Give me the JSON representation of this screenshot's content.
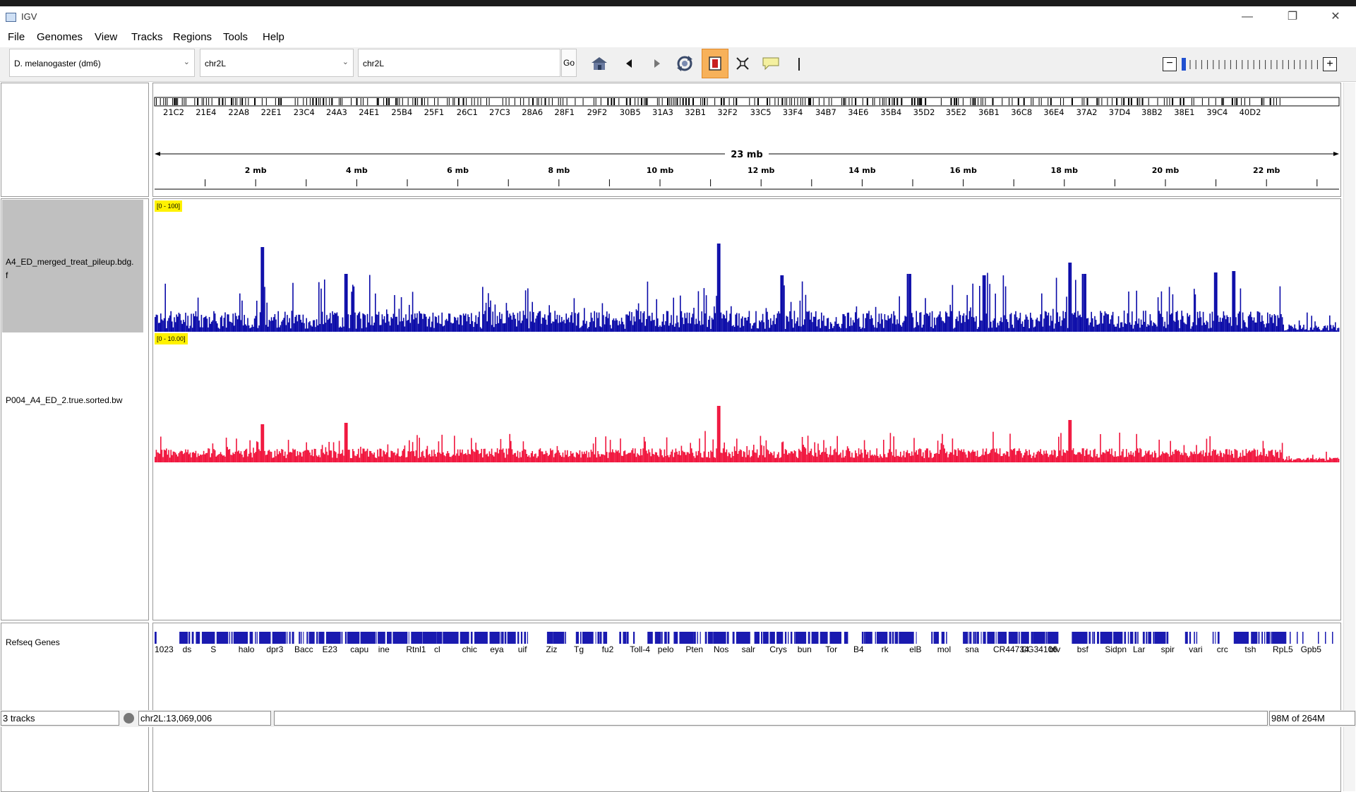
{
  "window": {
    "title": "IGV"
  },
  "menu": [
    "File",
    "Genomes",
    "View",
    "Tracks",
    "Regions",
    "Tools",
    "Help"
  ],
  "toolbar": {
    "genome": "D. melanogaster (dm6)",
    "chromosome": "chr2L",
    "locus": "chr2L",
    "go_label": "Go",
    "icons": [
      "home-icon",
      "back-icon",
      "forward-icon",
      "refresh-icon",
      "region-of-interest-icon",
      "resize-icon",
      "popup-text-icon"
    ]
  },
  "ruler": {
    "span_label": "23 mb",
    "tick_labels": [
      "2 mb",
      "4 mb",
      "6 mb",
      "8 mb",
      "10 mb",
      "12 mb",
      "14 mb",
      "16 mb",
      "18 mb",
      "20 mb",
      "22 mb"
    ],
    "bands": [
      "21C2",
      "21E4",
      "22A8",
      "22E1",
      "23C4",
      "24A3",
      "24E1",
      "25B4",
      "25F1",
      "26C1",
      "27C3",
      "28A6",
      "28F1",
      "29F2",
      "30B5",
      "31A3",
      "32B1",
      "32F2",
      "33C5",
      "33F4",
      "34B7",
      "34E6",
      "35B4",
      "35D2",
      "35E2",
      "36B1",
      "36C8",
      "36E4",
      "37A2",
      "37D4",
      "38B2",
      "38E1",
      "39C4",
      "40D2"
    ]
  },
  "tracks": [
    {
      "name": "A4_ED_merged_treat_pileup.bdg.",
      "name_line2": "f",
      "range": "[0 - 100]",
      "color": "#0a0aa8"
    },
    {
      "name": "P004_A4_ED_2.true.sorted.bw",
      "range": "[0 - 10.00]",
      "color": "#f0143c"
    },
    {
      "name": "Refseq Genes",
      "color": "#1a1ab0"
    }
  ],
  "genes": [
    "1023",
    "ds",
    "S",
    "halo",
    "dpr3",
    "Bacc",
    "E23",
    "capu",
    "ine",
    "Rtnl1",
    "cl",
    "chic",
    "eya",
    "uif",
    "Ziz",
    "Tg",
    "fu2",
    "Toll-4",
    "pelo",
    "Pten",
    "Nos",
    "salr",
    "Crys",
    "bun",
    "Tor",
    "B4",
    "rk",
    "elB",
    "mol",
    "sna",
    "CR44734",
    "CG34106",
    "btv",
    "bsf",
    "Sidpn",
    "Lar",
    "spir",
    "vari",
    "crc",
    "tsh",
    "RpL5",
    "Gpb5"
  ],
  "status": {
    "tracks": "3 tracks",
    "position": "chr2L:13,069,006",
    "memory": "98M of 264M"
  }
}
